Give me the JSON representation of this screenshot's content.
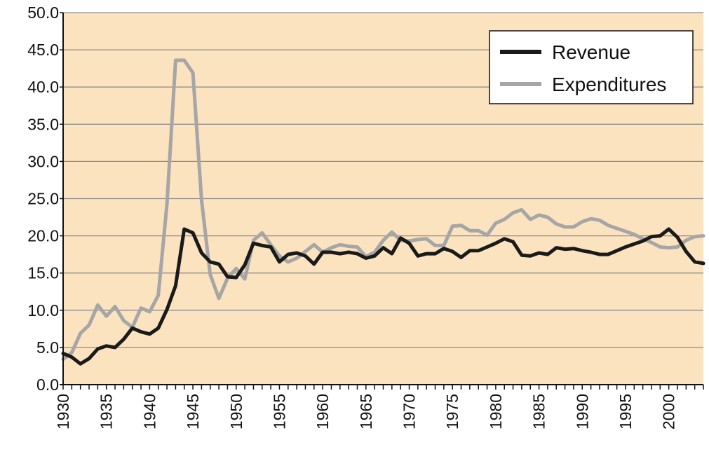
{
  "chart_data": {
    "type": "line",
    "title": "",
    "xlabel": "",
    "ylabel": "",
    "xlim": [
      1930,
      2004
    ],
    "ylim": [
      0,
      50
    ],
    "y_ticks": [
      "0.0",
      "5.0",
      "10.0",
      "15.0",
      "20.0",
      "25.0",
      "30.0",
      "35.0",
      "40.0",
      "45.0",
      "50.0"
    ],
    "x_ticks": [
      "1930",
      "1935",
      "1940",
      "1945",
      "1950",
      "1955",
      "1960",
      "1965",
      "1970",
      "1975",
      "1980",
      "1985",
      "1990",
      "1995",
      "2000"
    ],
    "grid": "horizontal",
    "legend_position": "top-right",
    "plot_background": "#fbe3c0",
    "series": [
      {
        "name": "Revenue",
        "color": "#1a1a1a",
        "x": [
          1930,
          1931,
          1932,
          1933,
          1934,
          1935,
          1936,
          1937,
          1938,
          1939,
          1940,
          1941,
          1942,
          1943,
          1944,
          1945,
          1946,
          1947,
          1948,
          1949,
          1950,
          1951,
          1952,
          1953,
          1954,
          1955,
          1956,
          1957,
          1958,
          1959,
          1960,
          1961,
          1962,
          1963,
          1964,
          1965,
          1966,
          1967,
          1968,
          1969,
          1970,
          1971,
          1972,
          1973,
          1974,
          1975,
          1976,
          1977,
          1978,
          1979,
          1980,
          1981,
          1982,
          1983,
          1984,
          1985,
          1986,
          1987,
          1988,
          1989,
          1990,
          1991,
          1992,
          1993,
          1994,
          1995,
          1996,
          1997,
          1998,
          1999,
          2000,
          2001,
          2002,
          2003,
          2004
        ],
        "values": [
          4.2,
          3.7,
          2.8,
          3.5,
          4.8,
          5.2,
          5.0,
          6.1,
          7.6,
          7.1,
          6.8,
          7.6,
          10.1,
          13.3,
          20.9,
          20.4,
          17.7,
          16.5,
          16.2,
          14.5,
          14.4,
          16.1,
          19.0,
          18.7,
          18.5,
          16.5,
          17.5,
          17.7,
          17.3,
          16.2,
          17.8,
          17.8,
          17.6,
          17.8,
          17.6,
          17.0,
          17.3,
          18.4,
          17.6,
          19.7,
          19.0,
          17.3,
          17.6,
          17.6,
          18.3,
          17.9,
          17.1,
          18.0,
          18.0,
          18.5,
          19.0,
          19.6,
          19.2,
          17.4,
          17.3,
          17.7,
          17.5,
          18.4,
          18.2,
          18.3,
          18.0,
          17.8,
          17.5,
          17.5,
          18.0,
          18.5,
          18.9,
          19.3,
          19.9,
          20.0,
          20.9,
          19.8,
          17.9,
          16.5,
          16.3
        ]
      },
      {
        "name": "Expenditures",
        "color": "#a6a6a6",
        "x": [
          1930,
          1931,
          1932,
          1933,
          1934,
          1935,
          1936,
          1937,
          1938,
          1939,
          1940,
          1941,
          1942,
          1943,
          1944,
          1945,
          1946,
          1947,
          1948,
          1949,
          1950,
          1951,
          1952,
          1953,
          1954,
          1955,
          1956,
          1957,
          1958,
          1959,
          1960,
          1961,
          1962,
          1963,
          1964,
          1965,
          1966,
          1967,
          1968,
          1969,
          1970,
          1971,
          1972,
          1973,
          1974,
          1975,
          1976,
          1977,
          1978,
          1979,
          1980,
          1981,
          1982,
          1983,
          1984,
          1985,
          1986,
          1987,
          1988,
          1989,
          1990,
          1991,
          1992,
          1993,
          1994,
          1995,
          1996,
          1997,
          1998,
          1999,
          2000,
          2001,
          2002,
          2003,
          2004
        ],
        "values": [
          3.4,
          4.3,
          6.9,
          8.0,
          10.7,
          9.2,
          10.5,
          8.6,
          7.7,
          10.3,
          9.8,
          12.0,
          24.3,
          43.6,
          43.6,
          41.9,
          24.8,
          14.8,
          11.6,
          14.3,
          15.6,
          14.2,
          19.4,
          20.4,
          18.8,
          17.3,
          16.5,
          17.0,
          17.9,
          18.8,
          17.8,
          18.4,
          18.8,
          18.6,
          18.5,
          17.2,
          17.8,
          19.4,
          20.5,
          19.4,
          19.3,
          19.5,
          19.6,
          18.7,
          18.7,
          21.3,
          21.4,
          20.7,
          20.7,
          20.1,
          21.7,
          22.2,
          23.1,
          23.5,
          22.2,
          22.8,
          22.5,
          21.6,
          21.2,
          21.2,
          21.9,
          22.3,
          22.1,
          21.4,
          21.0,
          20.6,
          20.2,
          19.6,
          19.1,
          18.5,
          18.4,
          18.5,
          19.4,
          19.9,
          20.0
        ]
      }
    ]
  }
}
